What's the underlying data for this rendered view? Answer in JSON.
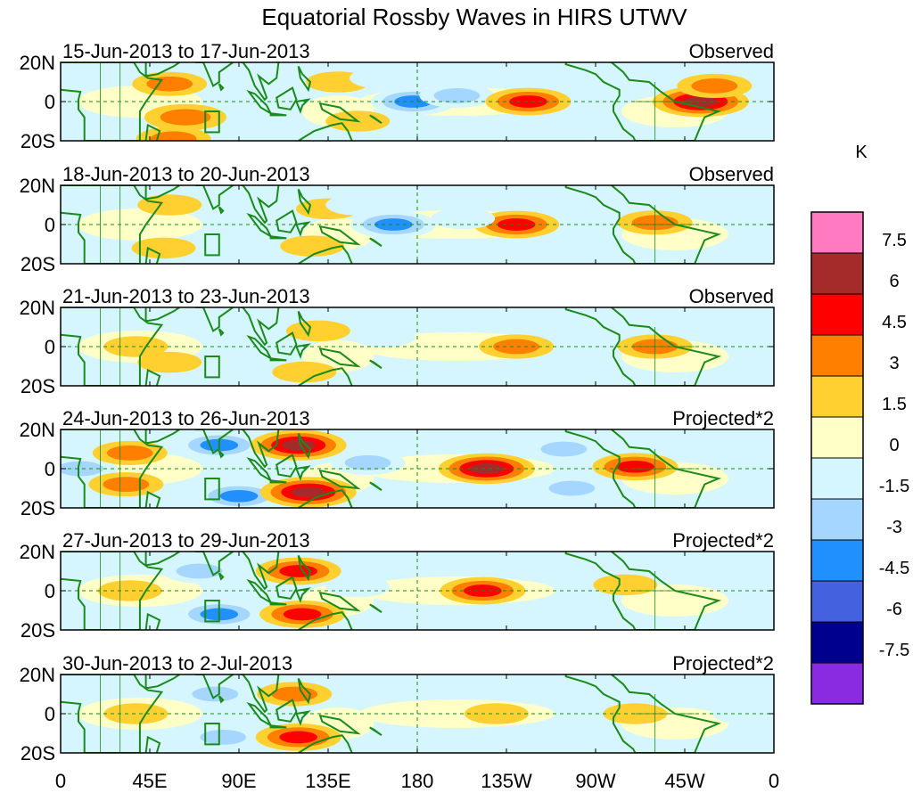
{
  "chart_data": {
    "type": "heatmap",
    "title": "Equatorial Rossby Waves in HIRS UTWV",
    "variable": "HIRS UTWV anomaly",
    "units": "K",
    "xlabel": "",
    "ylabel": "",
    "x_ticks": [
      "0",
      "45E",
      "90E",
      "135E",
      "180",
      "135W",
      "90W",
      "45W",
      "0"
    ],
    "y_ticks": [
      "20N",
      "0",
      "20S"
    ],
    "lon_range": [
      0,
      360
    ],
    "lat_range": [
      -20,
      20
    ],
    "panels": [
      {
        "period": "15-Jun-2013 to 17-Jun-2013",
        "kind": "Observed",
        "features": [
          {
            "lon": 55,
            "lat": 9,
            "value": 3
          },
          {
            "lon": 63,
            "lat": -8,
            "value": 4
          },
          {
            "lon": 57,
            "lat": -19,
            "value": 3
          },
          {
            "lon": 140,
            "lat": 10,
            "value": 1.5
          },
          {
            "lon": 150,
            "lat": -10,
            "value": 1.5
          },
          {
            "lon": 178,
            "lat": 0,
            "value": -4.5
          },
          {
            "lon": 162,
            "lat": 12,
            "value": -1.5
          },
          {
            "lon": 200,
            "lat": 3,
            "value": -3
          },
          {
            "lon": 236,
            "lat": 0,
            "value": 4.5
          },
          {
            "lon": 323,
            "lat": 0,
            "value": 6
          },
          {
            "lon": 330,
            "lat": 8,
            "value": 3
          }
        ]
      },
      {
        "period": "18-Jun-2013 to 20-Jun-2013",
        "kind": "Observed",
        "features": [
          {
            "lon": 55,
            "lat": 10,
            "value": 1.5
          },
          {
            "lon": 52,
            "lat": -12,
            "value": 1.5
          },
          {
            "lon": 135,
            "lat": 8,
            "value": 1.5
          },
          {
            "lon": 127,
            "lat": -11,
            "value": 1.5
          },
          {
            "lon": 168,
            "lat": 0,
            "value": -4.5
          },
          {
            "lon": 150,
            "lat": 10,
            "value": -1.5
          },
          {
            "lon": 230,
            "lat": 0,
            "value": 4.5
          },
          {
            "lon": 300,
            "lat": 1,
            "value": 3
          },
          {
            "lon": 203,
            "lat": 3,
            "value": -1.5
          }
        ]
      },
      {
        "period": "21-Jun-2013 to 23-Jun-2013",
        "kind": "Observed",
        "features": [
          {
            "lon": 38,
            "lat": 0,
            "value": 1.5
          },
          {
            "lon": 55,
            "lat": -8,
            "value": 1.5
          },
          {
            "lon": 100,
            "lat": 0,
            "value": -1.5
          },
          {
            "lon": 130,
            "lat": 8,
            "value": 1.5
          },
          {
            "lon": 123,
            "lat": -13,
            "value": 1.5
          },
          {
            "lon": 163,
            "lat": 5,
            "value": -1.5
          },
          {
            "lon": 230,
            "lat": 0,
            "value": 3
          },
          {
            "lon": 300,
            "lat": 0,
            "value": 3
          },
          {
            "lon": 258,
            "lat": 8,
            "value": -1.5
          }
        ]
      },
      {
        "period": "24-Jun-2013 to 26-Jun-2013",
        "kind": "Projected*2",
        "features": [
          {
            "lon": 10,
            "lat": 0,
            "value": -3
          },
          {
            "lon": 35,
            "lat": 8,
            "value": 3
          },
          {
            "lon": 33,
            "lat": -8,
            "value": 3
          },
          {
            "lon": 80,
            "lat": 12,
            "value": -4.5
          },
          {
            "lon": 90,
            "lat": -14,
            "value": -4.5
          },
          {
            "lon": 120,
            "lat": 12,
            "value": 6
          },
          {
            "lon": 125,
            "lat": -12,
            "value": 6
          },
          {
            "lon": 155,
            "lat": 3,
            "value": -3
          },
          {
            "lon": 215,
            "lat": 0,
            "value": 6
          },
          {
            "lon": 290,
            "lat": 1,
            "value": 4.5
          },
          {
            "lon": 254,
            "lat": 10,
            "value": -3
          },
          {
            "lon": 258,
            "lat": -10,
            "value": -3
          }
        ]
      },
      {
        "period": "27-Jun-2013 to 29-Jun-2013",
        "kind": "Projected*2",
        "features": [
          {
            "lon": 35,
            "lat": 0,
            "value": 1.5
          },
          {
            "lon": 70,
            "lat": 10,
            "value": -3
          },
          {
            "lon": 80,
            "lat": -12,
            "value": -4.5
          },
          {
            "lon": 120,
            "lat": 10,
            "value": 4.5
          },
          {
            "lon": 122,
            "lat": -12,
            "value": 4.5
          },
          {
            "lon": 150,
            "lat": 2,
            "value": -1.5
          },
          {
            "lon": 213,
            "lat": 0,
            "value": 4.5
          },
          {
            "lon": 285,
            "lat": 3,
            "value": 1.5
          },
          {
            "lon": 240,
            "lat": 10,
            "value": -1.5
          },
          {
            "lon": 250,
            "lat": -9,
            "value": -1.5
          }
        ]
      },
      {
        "period": "30-Jun-2013 to 2-Jul-2013",
        "kind": "Projected*2",
        "features": [
          {
            "lon": 38,
            "lat": 0,
            "value": 1.5
          },
          {
            "lon": 78,
            "lat": 10,
            "value": -3
          },
          {
            "lon": 82,
            "lat": -12,
            "value": -3
          },
          {
            "lon": 118,
            "lat": 10,
            "value": 3
          },
          {
            "lon": 120,
            "lat": -12,
            "value": 4.5
          },
          {
            "lon": 220,
            "lat": 0,
            "value": 1.5
          },
          {
            "lon": 290,
            "lat": 0,
            "value": 1.5
          },
          {
            "lon": 262,
            "lat": 6,
            "value": -1.5
          },
          {
            "lon": 345,
            "lat": 0,
            "value": -1.5
          }
        ]
      }
    ],
    "colorbar": {
      "unit_label": "K",
      "tick_labels": [
        "7.5",
        "6",
        "4.5",
        "3",
        "1.5",
        "0",
        "-1.5",
        "-3",
        "-4.5",
        "-6",
        "-7.5"
      ],
      "bins": [
        {
          "range": "> 7.5",
          "color": "#ff7ac0"
        },
        {
          "range": "6 to 7.5",
          "color": "#a52a2a"
        },
        {
          "range": "4.5 to 6",
          "color": "#ff0000"
        },
        {
          "range": "3 to 4.5",
          "color": "#ff7f00"
        },
        {
          "range": "1.5 to 3",
          "color": "#ffd030"
        },
        {
          "range": "0 to 1.5",
          "color": "#ffffc8"
        },
        {
          "range": "-1.5 to 0",
          "color": "#d6f6ff"
        },
        {
          "range": "-3 to -1.5",
          "color": "#a4d6ff"
        },
        {
          "range": "-4.5 to -3",
          "color": "#2090ff"
        },
        {
          "range": "-6 to -4.5",
          "color": "#4462e0"
        },
        {
          "range": "-7.5 to -6",
          "color": "#00008f"
        },
        {
          "range": "< -7.5",
          "color": "#8a2be2"
        }
      ]
    }
  }
}
